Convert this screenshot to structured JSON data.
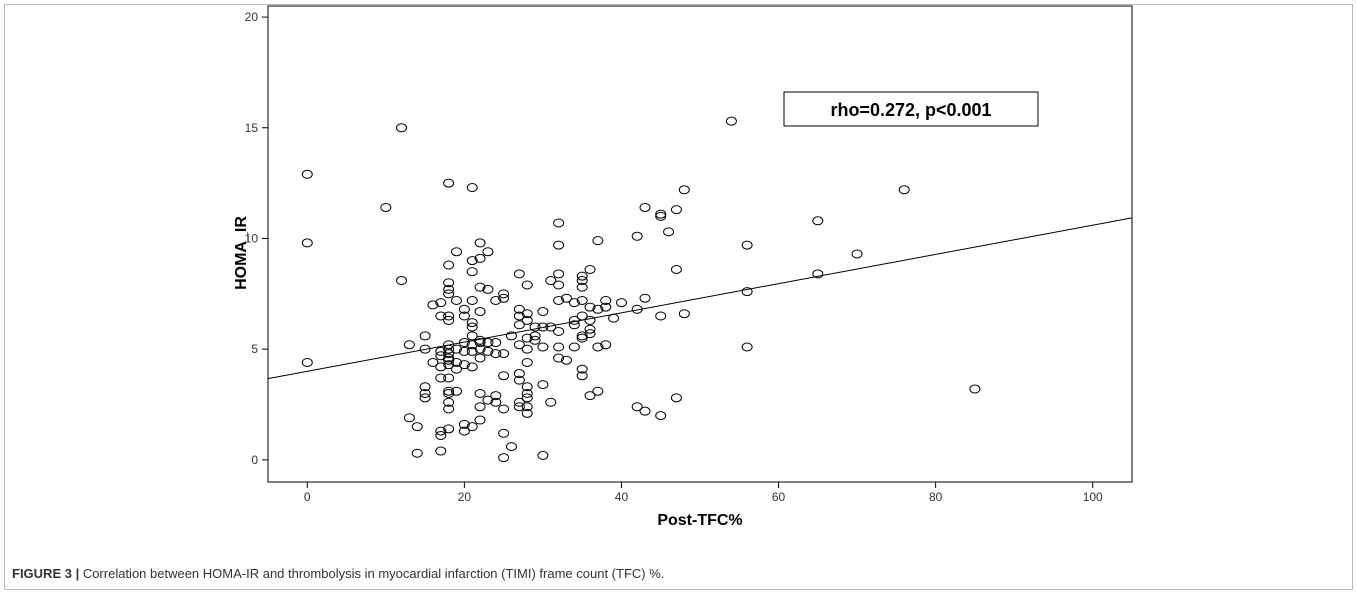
{
  "figure": {
    "label": "FIGURE 3 |",
    "caption": " Correlation between HOMA-IR and thrombolysis in myocardial infarction (TIMI) frame count (TFC) %."
  },
  "chart_data": {
    "type": "scatter",
    "xlabel": "Post-TFC%",
    "ylabel": "HOMA_IR",
    "xlim": [
      -5,
      105
    ],
    "ylim": [
      -1,
      20.5
    ],
    "xticks": [
      0,
      20,
      40,
      60,
      80,
      100
    ],
    "yticks": [
      0,
      5,
      10,
      15,
      20
    ],
    "grid": false,
    "annotation": "rho=0.272, p<0.001",
    "annotation_position": "top-right",
    "fit_line": {
      "intercept": 4.0,
      "slope": 0.066
    },
    "points": [
      [
        0,
        12.9
      ],
      [
        0,
        9.8
      ],
      [
        0,
        4.4
      ],
      [
        10,
        11.4
      ],
      [
        12,
        15.0
      ],
      [
        12,
        8.1
      ],
      [
        13,
        5.2
      ],
      [
        13,
        1.9
      ],
      [
        14,
        1.5
      ],
      [
        14,
        0.3
      ],
      [
        15,
        5.6
      ],
      [
        15,
        5.0
      ],
      [
        15,
        3.3
      ],
      [
        15,
        3.0
      ],
      [
        15,
        2.8
      ],
      [
        16,
        7.0
      ],
      [
        16,
        4.4
      ],
      [
        17,
        7.1
      ],
      [
        17,
        6.5
      ],
      [
        17,
        4.9
      ],
      [
        17,
        4.7
      ],
      [
        17,
        4.2
      ],
      [
        17,
        3.7
      ],
      [
        17,
        1.3
      ],
      [
        17,
        1.1
      ],
      [
        17,
        0.4
      ],
      [
        18,
        12.5
      ],
      [
        18,
        8.8
      ],
      [
        18,
        8.0
      ],
      [
        18,
        7.7
      ],
      [
        18,
        7.5
      ],
      [
        18,
        6.5
      ],
      [
        18,
        6.3
      ],
      [
        18,
        5.2
      ],
      [
        18,
        5.0
      ],
      [
        18,
        4.8
      ],
      [
        18,
        4.6
      ],
      [
        18,
        4.5
      ],
      [
        18,
        4.3
      ],
      [
        18,
        3.7
      ],
      [
        18,
        3.1
      ],
      [
        18,
        3.0
      ],
      [
        18,
        2.6
      ],
      [
        18,
        2.3
      ],
      [
        18,
        1.4
      ],
      [
        19,
        9.4
      ],
      [
        19,
        7.2
      ],
      [
        19,
        5.0
      ],
      [
        19,
        4.4
      ],
      [
        19,
        4.1
      ],
      [
        19,
        3.1
      ],
      [
        20,
        6.8
      ],
      [
        20,
        6.5
      ],
      [
        20,
        5.3
      ],
      [
        20,
        4.9
      ],
      [
        20,
        4.3
      ],
      [
        20,
        1.6
      ],
      [
        20,
        1.3
      ],
      [
        21,
        12.3
      ],
      [
        21,
        8.5
      ],
      [
        21,
        7.2
      ],
      [
        21,
        6.2
      ],
      [
        21,
        6.0
      ],
      [
        21,
        5.6
      ],
      [
        21,
        5.2
      ],
      [
        21,
        4.9
      ],
      [
        21,
        4.2
      ],
      [
        21,
        1.5
      ],
      [
        21,
        9.0
      ],
      [
        22,
        9.8
      ],
      [
        22,
        9.1
      ],
      [
        22,
        7.8
      ],
      [
        22,
        6.7
      ],
      [
        22,
        5.4
      ],
      [
        22,
        5.3
      ],
      [
        22,
        5.0
      ],
      [
        22,
        4.6
      ],
      [
        22,
        3.0
      ],
      [
        22,
        2.4
      ],
      [
        22,
        1.8
      ],
      [
        23,
        9.4
      ],
      [
        23,
        7.7
      ],
      [
        23,
        5.3
      ],
      [
        23,
        4.9
      ],
      [
        23,
        2.7
      ],
      [
        24,
        7.2
      ],
      [
        24,
        5.3
      ],
      [
        24,
        4.8
      ],
      [
        24,
        2.9
      ],
      [
        24,
        2.6
      ],
      [
        25,
        7.5
      ],
      [
        25,
        7.3
      ],
      [
        25,
        4.8
      ],
      [
        25,
        3.8
      ],
      [
        25,
        2.3
      ],
      [
        25,
        1.2
      ],
      [
        25,
        0.1
      ],
      [
        26,
        5.6
      ],
      [
        26,
        0.6
      ],
      [
        27,
        8.4
      ],
      [
        27,
        6.8
      ],
      [
        27,
        6.5
      ],
      [
        27,
        6.1
      ],
      [
        27,
        5.2
      ],
      [
        27,
        3.9
      ],
      [
        27,
        3.6
      ],
      [
        27,
        2.6
      ],
      [
        27,
        2.4
      ],
      [
        28,
        7.9
      ],
      [
        28,
        6.6
      ],
      [
        28,
        6.3
      ],
      [
        28,
        5.5
      ],
      [
        28,
        5.0
      ],
      [
        28,
        4.4
      ],
      [
        28,
        3.3
      ],
      [
        28,
        3.0
      ],
      [
        28,
        2.8
      ],
      [
        28,
        2.4
      ],
      [
        28,
        2.1
      ],
      [
        29,
        6.0
      ],
      [
        29,
        5.6
      ],
      [
        29,
        5.4
      ],
      [
        30,
        6.7
      ],
      [
        30,
        6.0
      ],
      [
        30,
        5.1
      ],
      [
        30,
        3.4
      ],
      [
        30,
        0.2
      ],
      [
        31,
        8.1
      ],
      [
        31,
        6.0
      ],
      [
        31,
        2.6
      ],
      [
        32,
        10.7
      ],
      [
        32,
        9.7
      ],
      [
        32,
        8.4
      ],
      [
        32,
        7.9
      ],
      [
        32,
        7.2
      ],
      [
        32,
        5.8
      ],
      [
        32,
        5.1
      ],
      [
        32,
        4.6
      ],
      [
        33,
        7.3
      ],
      [
        33,
        4.5
      ],
      [
        34,
        7.1
      ],
      [
        34,
        6.3
      ],
      [
        34,
        5.1
      ],
      [
        34,
        6.1
      ],
      [
        35,
        8.3
      ],
      [
        35,
        7.8
      ],
      [
        35,
        7.2
      ],
      [
        35,
        6.5
      ],
      [
        35,
        5.6
      ],
      [
        35,
        5.5
      ],
      [
        35,
        4.1
      ],
      [
        35,
        3.8
      ],
      [
        35,
        8.1
      ],
      [
        36,
        8.6
      ],
      [
        36,
        6.9
      ],
      [
        36,
        6.3
      ],
      [
        36,
        5.9
      ],
      [
        36,
        5.7
      ],
      [
        36,
        2.9
      ],
      [
        37,
        9.9
      ],
      [
        37,
        6.8
      ],
      [
        37,
        5.1
      ],
      [
        37,
        3.1
      ],
      [
        38,
        7.2
      ],
      [
        38,
        6.9
      ],
      [
        38,
        5.2
      ],
      [
        39,
        6.4
      ],
      [
        40,
        7.1
      ],
      [
        42,
        10.1
      ],
      [
        42,
        6.8
      ],
      [
        42,
        2.4
      ],
      [
        43,
        11.4
      ],
      [
        43,
        7.3
      ],
      [
        43,
        2.2
      ],
      [
        45,
        11.1
      ],
      [
        45,
        11.0
      ],
      [
        45,
        6.5
      ],
      [
        45,
        2.0
      ],
      [
        46,
        10.3
      ],
      [
        47,
        11.3
      ],
      [
        47,
        8.6
      ],
      [
        47,
        2.8
      ],
      [
        48,
        12.2
      ],
      [
        48,
        6.6
      ],
      [
        54,
        15.3
      ],
      [
        56,
        9.7
      ],
      [
        56,
        7.6
      ],
      [
        56,
        5.1
      ],
      [
        65,
        10.8
      ],
      [
        65,
        8.4
      ],
      [
        70,
        9.3
      ],
      [
        76,
        12.2
      ],
      [
        85,
        3.2
      ]
    ]
  }
}
